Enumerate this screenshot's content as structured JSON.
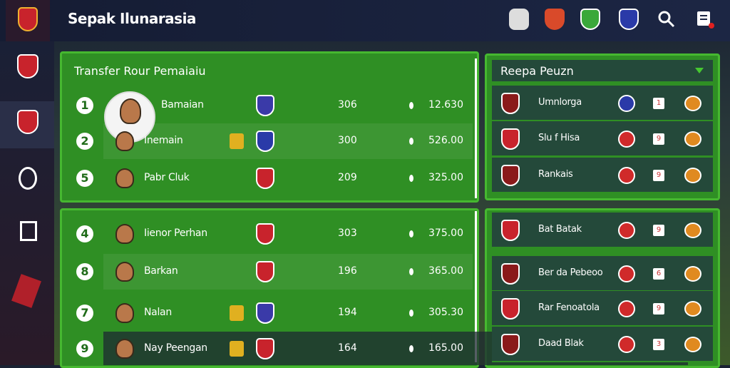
{
  "header": {
    "title": "Sepak Ilunarasia"
  },
  "transfer": {
    "title": "Transfer Rour Pemaiaiu",
    "rows": [
      {
        "rank": "1",
        "name": "Bamaian",
        "value": "306",
        "price": "12.630"
      },
      {
        "rank": "2",
        "name": "Inemain",
        "value": "300",
        "price": "526.00"
      },
      {
        "rank": "5",
        "name": "Pabr Cluk",
        "value": "209",
        "price": "325.00"
      },
      {
        "rank": "4",
        "name": "Iienor Perhan",
        "value": "303",
        "price": "375.00"
      },
      {
        "rank": "8",
        "name": "Barkan",
        "value": "196",
        "price": "365.00"
      },
      {
        "rank": "7",
        "name": "Nalan",
        "value": "194",
        "price": "305.30"
      },
      {
        "rank": "9",
        "name": "Nay Peengan",
        "value": "164",
        "price": "165.00"
      }
    ]
  },
  "side": {
    "title": "Reepa Peuzn",
    "rows": [
      {
        "name": "Umnlorga",
        "count": "1"
      },
      {
        "name": "Slu f Hisa",
        "count": "9"
      },
      {
        "name": "Rankais",
        "count": "9"
      },
      {
        "name": "Bat Batak",
        "count": "9"
      },
      {
        "name": "Ber da Pebeoo",
        "count": "6"
      },
      {
        "name": "Rar Fenoatola",
        "count": "9"
      },
      {
        "name": "Daad Blak",
        "count": "3"
      }
    ]
  }
}
